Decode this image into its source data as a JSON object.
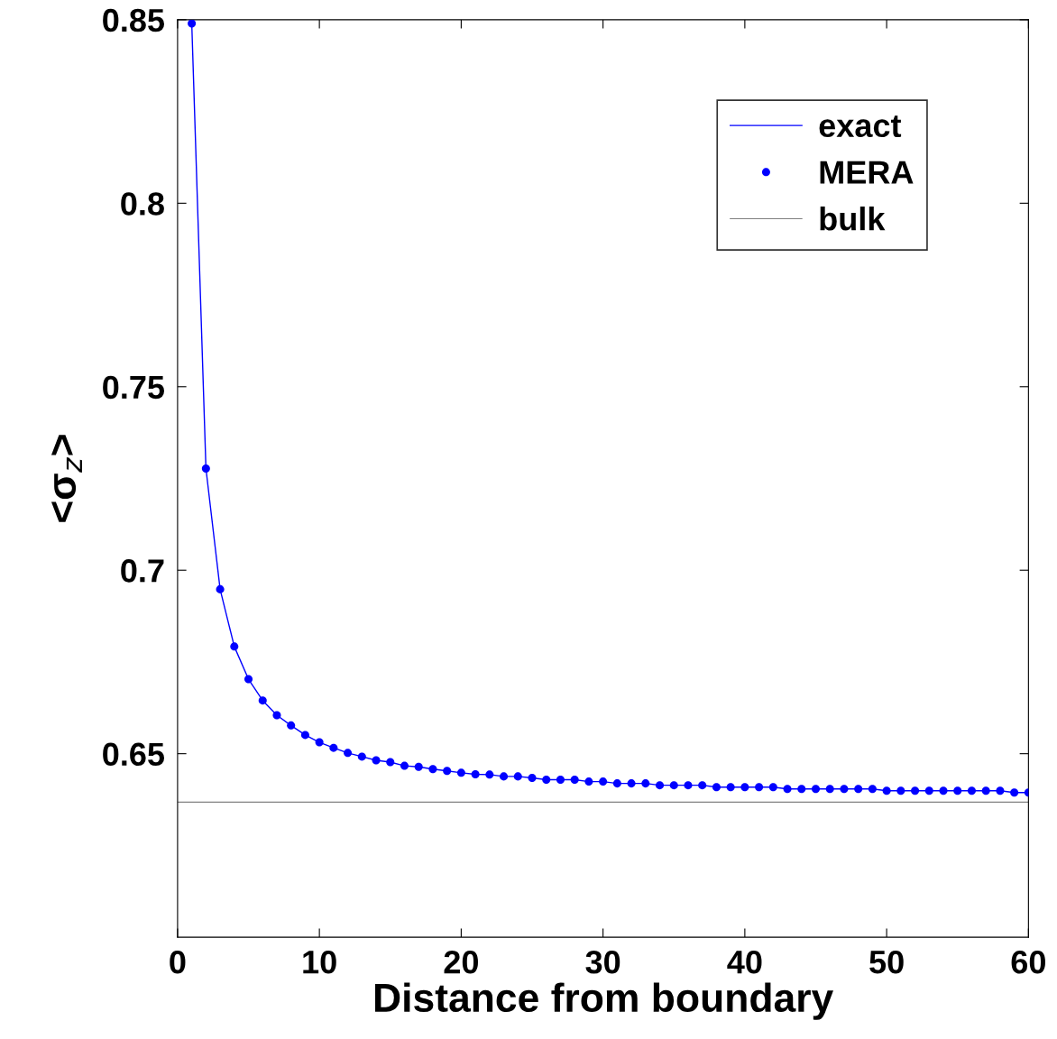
{
  "chart_data": {
    "type": "line",
    "xlabel": "Distance from boundary",
    "ylabel": "<σ$_{z}$>",
    "xlim": [
      0,
      60
    ],
    "xticks": [
      0,
      10,
      20,
      30,
      40,
      50,
      60
    ],
    "ylim": [
      0.6,
      0.85
    ],
    "yticks": [
      0.65,
      0.7,
      0.75,
      0.8,
      0.85
    ],
    "grid": false,
    "legend": "top right",
    "x": [
      1,
      2,
      3,
      4,
      5,
      6,
      7,
      8,
      9,
      10,
      11,
      12,
      13,
      14,
      15,
      16,
      17,
      18,
      19,
      20,
      21,
      22,
      23,
      24,
      25,
      26,
      27,
      28,
      29,
      30,
      31,
      32,
      33,
      34,
      35,
      36,
      37,
      38,
      39,
      40,
      41,
      42,
      43,
      44,
      45,
      46,
      47,
      48,
      49,
      50,
      51,
      52,
      53,
      54,
      55,
      56,
      57,
      58,
      59,
      60
    ],
    "series": [
      {
        "name": "exact",
        "color": "#0000ff",
        "marker": "none",
        "line_style": "solid",
        "values": [
          0.849,
          0.7277,
          0.6948,
          0.6792,
          0.6703,
          0.6645,
          0.6605,
          0.6577,
          0.6551,
          0.6531,
          0.6516,
          0.6502,
          0.6492,
          0.6482,
          0.6477,
          0.6467,
          0.6464,
          0.6458,
          0.6453,
          0.6448,
          0.6444,
          0.6443,
          0.6438,
          0.6438,
          0.6434,
          0.6429,
          0.6429,
          0.6429,
          0.6424,
          0.6424,
          0.6419,
          0.6419,
          0.6419,
          0.6414,
          0.6414,
          0.6414,
          0.6414,
          0.6409,
          0.6409,
          0.6409,
          0.6409,
          0.6409,
          0.6404,
          0.6404,
          0.6404,
          0.6404,
          0.6404,
          0.6404,
          0.6404,
          0.6399,
          0.6399,
          0.6399,
          0.6399,
          0.6399,
          0.6399,
          0.6399,
          0.6399,
          0.6399,
          0.6394,
          0.6394
        ]
      },
      {
        "name": "MERA",
        "type": "scatter",
        "color": "#0000ff",
        "marker": "circle",
        "values": [
          0.849,
          0.7277,
          0.6948,
          0.6792,
          0.6703,
          0.6645,
          0.6605,
          0.6577,
          0.6551,
          0.6531,
          0.6516,
          0.6502,
          0.6492,
          0.6482,
          0.6477,
          0.6467,
          0.6464,
          0.6458,
          0.6453,
          0.6448,
          0.6444,
          0.6443,
          0.6438,
          0.6438,
          0.6434,
          0.6429,
          0.6429,
          0.6429,
          0.6424,
          0.6424,
          0.6419,
          0.6419,
          0.6419,
          0.6414,
          0.6414,
          0.6414,
          0.6414,
          0.6409,
          0.6409,
          0.6409,
          0.6409,
          0.6409,
          0.6404,
          0.6404,
          0.6404,
          0.6404,
          0.6404,
          0.6404,
          0.6404,
          0.6399,
          0.6399,
          0.6399,
          0.6399,
          0.6399,
          0.6399,
          0.6399,
          0.6399,
          0.6399,
          0.6394,
          0.6394
        ]
      },
      {
        "name": "bulk",
        "color": "#808080",
        "marker": "none",
        "line_style": "solid",
        "x": [
          0,
          60
        ],
        "values": [
          0.6368,
          0.6368
        ]
      }
    ]
  }
}
